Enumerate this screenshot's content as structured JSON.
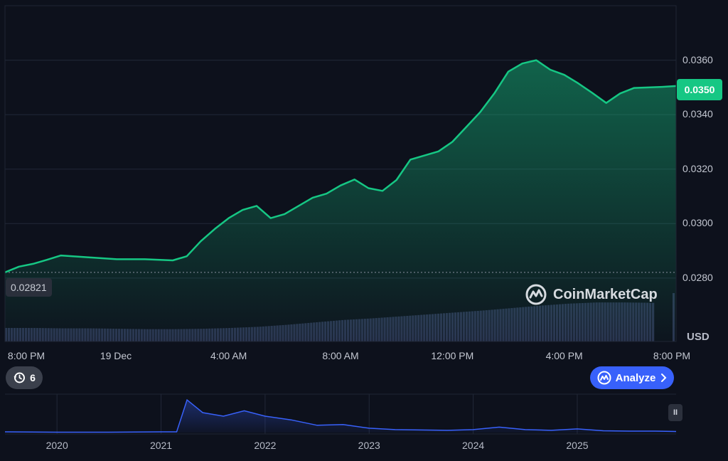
{
  "chart_data": {
    "type": "area",
    "unit": "USD",
    "current_price_label": "0.0350",
    "reference_price_label": "0.02821",
    "reference_price": 0.02821,
    "ylim": [
      0.0275,
      0.038
    ],
    "y_ticks": [
      0.028,
      0.03,
      0.032,
      0.034,
      0.036
    ],
    "y_tick_labels": [
      "0.0280",
      "0.0300",
      "0.0320",
      "0.0340",
      "0.0360"
    ],
    "x_tick_labels": [
      "8:00 PM",
      "19 Dec",
      "4:00 AM",
      "8:00 AM",
      "12:00 PM",
      "4:00 PM",
      "8:00 PM"
    ],
    "x_tick_hours": [
      0,
      4,
      8,
      12,
      16,
      20,
      24
    ],
    "price_series": {
      "hours": [
        0,
        0.5,
        1,
        1.5,
        2,
        3,
        4,
        5,
        6,
        6.5,
        7,
        7.5,
        8,
        8.5,
        9,
        9.5,
        10,
        10.5,
        11,
        11.5,
        12,
        12.5,
        13,
        13.5,
        14,
        14.5,
        15,
        15.5,
        16,
        16.5,
        17,
        17.5,
        18,
        18.5,
        19,
        19.5,
        20,
        20.5,
        21,
        21.5,
        22,
        22.5,
        23,
        23.5,
        24
      ],
      "values": [
        0.02821,
        0.02842,
        0.02852,
        0.02867,
        0.02883,
        0.02876,
        0.02869,
        0.02869,
        0.02865,
        0.0288,
        0.02935,
        0.0298,
        0.0302,
        0.0305,
        0.03065,
        0.0302,
        0.03035,
        0.03065,
        0.03095,
        0.0311,
        0.0314,
        0.03162,
        0.0313,
        0.0312,
        0.0316,
        0.03235,
        0.0325,
        0.03265,
        0.033,
        0.03355,
        0.0341,
        0.03478,
        0.03558,
        0.03588,
        0.036,
        0.03565,
        0.03546,
        0.03515,
        0.0348,
        0.03443,
        0.03478,
        0.03498,
        0.035,
        0.03502,
        0.03505
      ]
    },
    "volume_series": {
      "description_free": true,
      "values": [
        0.34,
        0.34,
        0.33,
        0.33,
        0.32,
        0.31,
        0.31,
        0.32,
        0.34,
        0.37,
        0.42,
        0.48,
        0.54,
        0.58,
        0.63,
        0.68,
        0.73,
        0.78,
        0.84,
        0.9,
        0.95,
        0.98,
        0.98,
        0.97
      ]
    },
    "navigator": {
      "x_tick_labels": [
        "2020",
        "2021",
        "2022",
        "2023",
        "2024",
        "2025"
      ],
      "years": [
        2019.5,
        2020.0,
        2020.5,
        2021.0,
        2021.15,
        2021.25,
        2021.4,
        2021.6,
        2021.8,
        2022.0,
        2022.25,
        2022.5,
        2022.75,
        2023.0,
        2023.25,
        2023.5,
        2023.75,
        2024.0,
        2024.25,
        2024.5,
        2024.75,
        2025.0,
        2025.25,
        2025.5,
        2025.75,
        2025.95
      ],
      "values": [
        0.02,
        0.01,
        0.01,
        0.02,
        0.02,
        0.9,
        0.55,
        0.45,
        0.6,
        0.45,
        0.35,
        0.2,
        0.22,
        0.12,
        0.08,
        0.07,
        0.06,
        0.08,
        0.15,
        0.08,
        0.06,
        0.1,
        0.05,
        0.04,
        0.04,
        0.03
      ]
    }
  },
  "watermark_text": "CoinMarketCap",
  "controls": {
    "history_count": "6",
    "analyze_label": "Analyze",
    "pause_label": "II"
  },
  "colors": {
    "background": "#0d111c",
    "price_line": "#16c784",
    "price_badge": "#16c784",
    "volume_bar": "#2b3350",
    "navigator_line": "#3861fb",
    "analyze_button": "#3861fb"
  },
  "icons": {
    "history": "history-icon",
    "analyze": "analyze-logo-icon",
    "chevron": "chevron-right-icon",
    "watermark": "coinmarketcap-logo-icon"
  }
}
